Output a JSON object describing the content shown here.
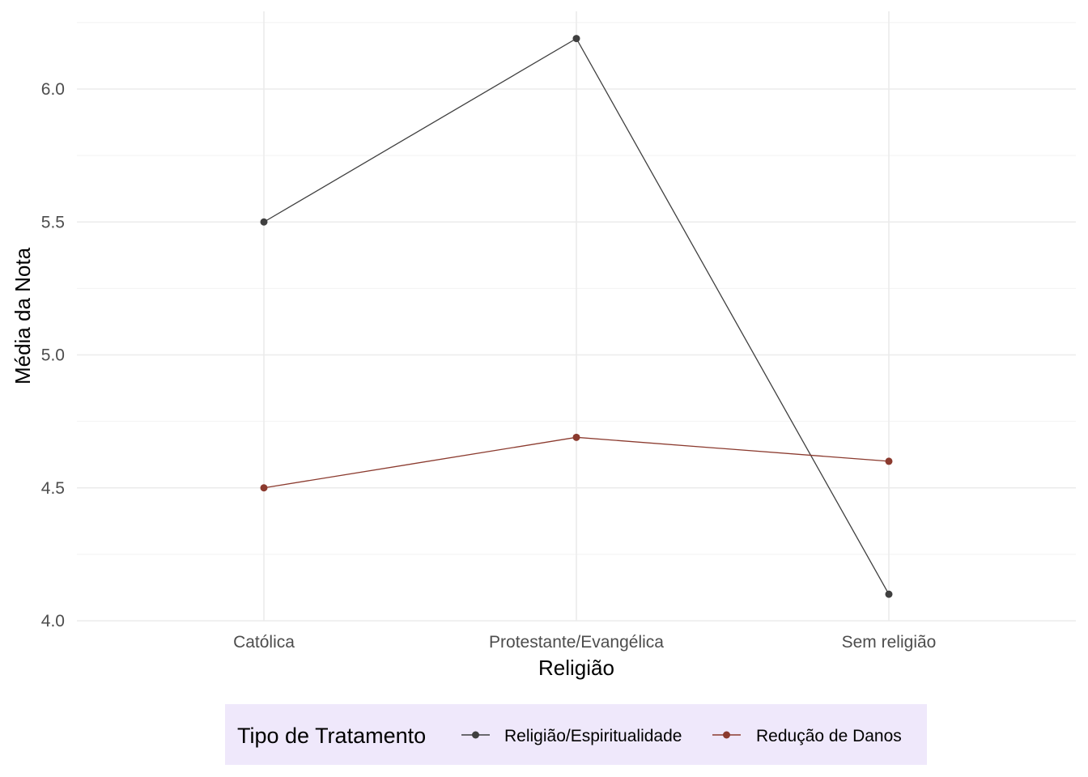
{
  "chart_data": {
    "type": "line",
    "title": "",
    "xlabel": "Religião",
    "ylabel": "Média da Nota",
    "categories": [
      "Católica",
      "Protestante/Evangélica",
      "Sem religião"
    ],
    "ylim": [
      4.0,
      6.25
    ],
    "yticks": [
      4.0,
      4.5,
      5.0,
      5.5,
      6.0
    ],
    "ytick_labels": [
      "4.0",
      "4.5",
      "5.0",
      "5.5",
      "6.0"
    ],
    "grid": true,
    "legend": {
      "title": "Tipo de Tratamento",
      "position": "bottom",
      "background": "#efe8fb"
    },
    "series": [
      {
        "name": "Religião/Espiritualidade",
        "color": "#3f3f3f",
        "values": [
          5.5,
          6.19,
          4.1
        ]
      },
      {
        "name": "Redução de Danos",
        "color": "#8b3a2e",
        "values": [
          4.5,
          4.69,
          4.6
        ]
      }
    ]
  }
}
